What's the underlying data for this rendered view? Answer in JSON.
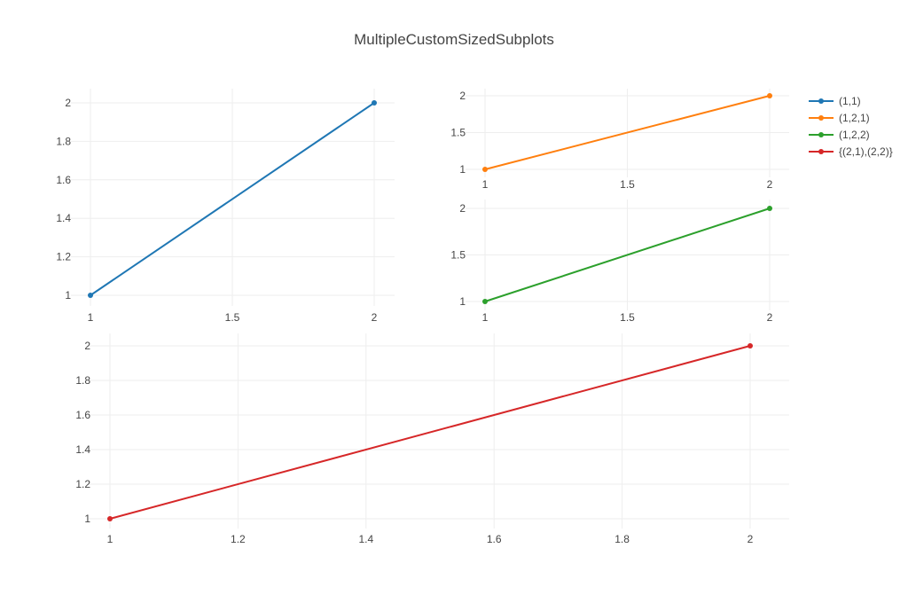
{
  "chart_data": {
    "type": "line",
    "title": "MultipleCustomSizedSubplots",
    "legend_position": "top-right",
    "grid": true,
    "subplots": [
      {
        "key": "sp11",
        "series": {
          "name": "(1,1)",
          "color": "#1f77b4",
          "x": [
            1,
            2
          ],
          "y": [
            1,
            2
          ]
        },
        "xlim": [
          1,
          2
        ],
        "ylim": [
          1,
          2
        ],
        "xticks": [
          "1",
          "1.5",
          "2"
        ],
        "yticks": [
          "1",
          "1.2",
          "1.4",
          "1.6",
          "1.8",
          "2"
        ]
      },
      {
        "key": "sp121",
        "series": {
          "name": "(1,2,1)",
          "color": "#ff7f0e",
          "x": [
            1,
            2
          ],
          "y": [
            1,
            2
          ]
        },
        "xlim": [
          1,
          2
        ],
        "ylim": [
          1,
          2
        ],
        "xticks": [
          "1",
          "1.5",
          "2"
        ],
        "yticks": [
          "1",
          "1.5",
          "2"
        ]
      },
      {
        "key": "sp122",
        "series": {
          "name": "(1,2,2)",
          "color": "#2ca02c",
          "x": [
            1,
            2
          ],
          "y": [
            1,
            2
          ]
        },
        "xlim": [
          1,
          2
        ],
        "ylim": [
          1,
          2
        ],
        "xticks": [
          "1",
          "1.5",
          "2"
        ],
        "yticks": [
          "1",
          "1.5",
          "2"
        ]
      },
      {
        "key": "sp2",
        "series": {
          "name": "{(2,1),(2,2)}",
          "color": "#d62728",
          "x": [
            1,
            2
          ],
          "y": [
            1,
            2
          ]
        },
        "xlim": [
          1,
          2
        ],
        "ylim": [
          1,
          2
        ],
        "xticks": [
          "1",
          "1.2",
          "1.4",
          "1.6",
          "1.8",
          "2"
        ],
        "yticks": [
          "1",
          "1.2",
          "1.4",
          "1.6",
          "1.8",
          "2"
        ]
      }
    ]
  }
}
